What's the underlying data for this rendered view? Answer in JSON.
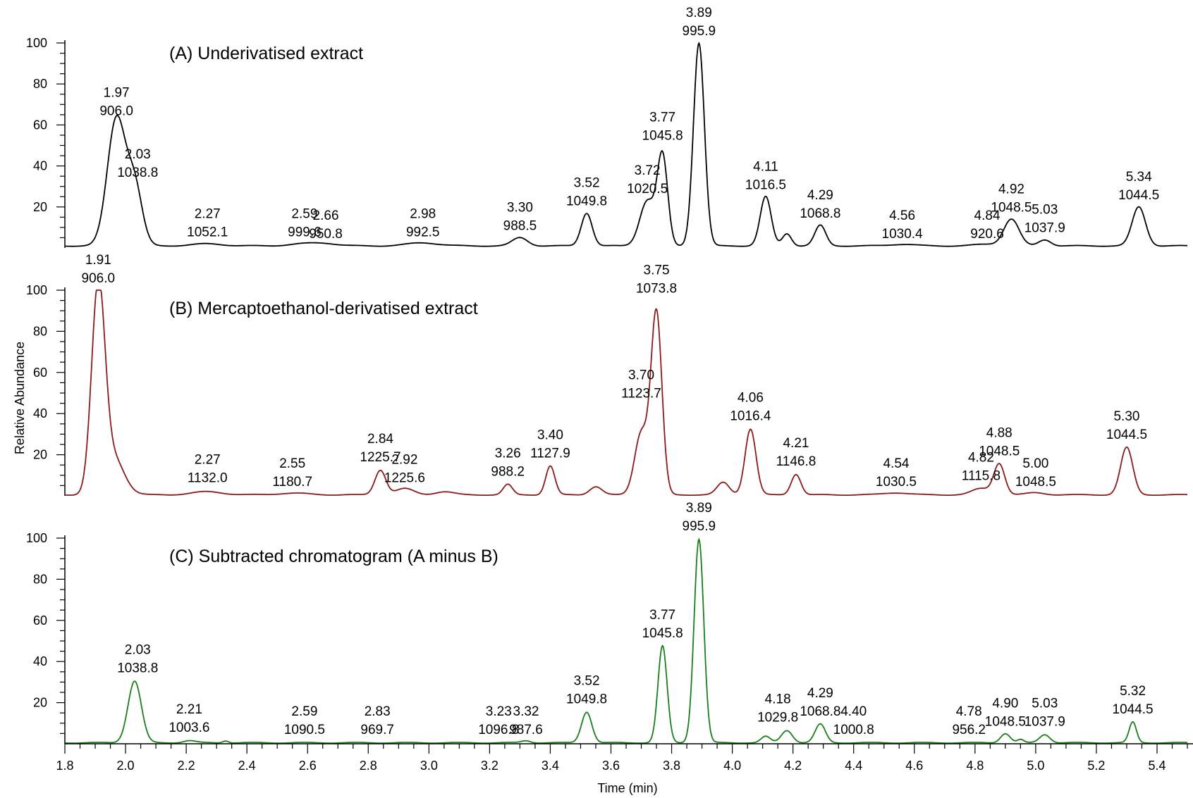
{
  "chart_data": {
    "type": "line",
    "xlabel": "Time (min)",
    "ylabel": "Relative Abundance",
    "xlim": [
      1.8,
      5.5
    ],
    "ylim": [
      0,
      100
    ],
    "x_ticks": [
      "1.8",
      "2.0",
      "2.2",
      "2.4",
      "2.6",
      "2.8",
      "3.0",
      "3.2",
      "3.4",
      "3.6",
      "3.8",
      "4.0",
      "4.2",
      "4.4",
      "4.6",
      "4.8",
      "5.0",
      "5.2",
      "5.4"
    ],
    "y_ticks": [
      "20",
      "40",
      "60",
      "80",
      "100"
    ],
    "panels": [
      {
        "title": "(A) Underivatised extract",
        "color": "#000000",
        "baseline": 1,
        "peaks": [
          {
            "rt": 1.97,
            "mz": 906.0,
            "height": 62,
            "width": 0.03
          },
          {
            "rt": 2.03,
            "mz": 1038.8,
            "height": 28,
            "width": 0.025
          },
          {
            "rt": 2.27,
            "mz": 1052.1,
            "height": 1,
            "width": 0.05
          },
          {
            "rt": 2.59,
            "mz": 999.6,
            "height": 1,
            "width": 0.05
          },
          {
            "rt": 2.66,
            "mz": 950.8,
            "height": 1,
            "width": 0.04
          },
          {
            "rt": 2.98,
            "mz": 992.5,
            "height": 1.5,
            "width": 0.05
          },
          {
            "rt": 3.3,
            "mz": 988.5,
            "height": 4,
            "width": 0.025
          },
          {
            "rt": 3.52,
            "mz": 1049.8,
            "height": 16,
            "width": 0.018
          },
          {
            "rt": 3.72,
            "mz": 1020.5,
            "height": 22,
            "width": 0.025
          },
          {
            "rt": 3.77,
            "mz": 1045.8,
            "height": 43,
            "width": 0.017
          },
          {
            "rt": 3.89,
            "mz": 995.9,
            "height": 99,
            "width": 0.018
          },
          {
            "rt": 4.11,
            "mz": 1016.5,
            "height": 24,
            "width": 0.018
          },
          {
            "rt": 4.18,
            "mz": null,
            "height": 6,
            "width": 0.015
          },
          {
            "rt": 4.29,
            "mz": 1068.8,
            "height": 10,
            "width": 0.018
          },
          {
            "rt": 4.56,
            "mz": 1030.4,
            "height": 0.8,
            "width": 0.04
          },
          {
            "rt": 4.84,
            "mz": 920.6,
            "height": 0.8,
            "width": 0.04
          },
          {
            "rt": 4.92,
            "mz": 1048.5,
            "height": 13,
            "width": 0.025
          },
          {
            "rt": 5.03,
            "mz": 1037.9,
            "height": 3,
            "width": 0.02
          },
          {
            "rt": 5.34,
            "mz": 1044.5,
            "height": 19,
            "width": 0.022
          }
        ],
        "labels": [
          {
            "rt": "1.97",
            "mz": "906.0",
            "x": 1.97,
            "y": 62
          },
          {
            "rt": "2.03",
            "mz": "1038.8",
            "x": 2.04,
            "y": 32
          },
          {
            "rt": "2.27",
            "mz": "1052.1",
            "x": 2.27,
            "y": 3
          },
          {
            "rt": "2.59",
            "mz": "999.6",
            "x": 2.59,
            "y": 3
          },
          {
            "rt": "2.66",
            "mz": "950.8",
            "x": 2.66,
            "y": 2
          },
          {
            "rt": "2.98",
            "mz": "992.5",
            "x": 2.98,
            "y": 3
          },
          {
            "rt": "3.30",
            "mz": "988.5",
            "x": 3.3,
            "y": 6
          },
          {
            "rt": "3.52",
            "mz": "1049.8",
            "x": 3.52,
            "y": 18
          },
          {
            "rt": "3.72",
            "mz": "1020.5",
            "x": 3.72,
            "y": 24
          },
          {
            "rt": "3.77",
            "mz": "1045.8",
            "x": 3.77,
            "y": 50
          },
          {
            "rt": "3.89",
            "mz": "995.9",
            "x": 3.89,
            "y": 101
          },
          {
            "rt": "4.11",
            "mz": "1016.5",
            "x": 4.11,
            "y": 26
          },
          {
            "rt": "4.29",
            "mz": "1068.8",
            "x": 4.29,
            "y": 12
          },
          {
            "rt": "4.56",
            "mz": "1030.4",
            "x": 4.56,
            "y": 2
          },
          {
            "rt": "4.84",
            "mz": "920.6",
            "x": 4.84,
            "y": 2
          },
          {
            "rt": "4.92",
            "mz": "1048.5",
            "x": 4.92,
            "y": 15
          },
          {
            "rt": "5.03",
            "mz": "1037.9",
            "x": 5.03,
            "y": 5
          },
          {
            "rt": "5.34",
            "mz": "1044.5",
            "x": 5.34,
            "y": 21
          }
        ]
      },
      {
        "title": "(B) Mercaptoethanol-derivatised extract",
        "color": "#8b1a1a",
        "baseline": 0.5,
        "peaks": [
          {
            "rt": 1.91,
            "mz": 906.0,
            "height": 99,
            "width": 0.022
          },
          {
            "rt": 1.96,
            "mz": null,
            "height": 18,
            "width": 0.035
          },
          {
            "rt": 2.27,
            "mz": 1132.0,
            "height": 1.5,
            "width": 0.05
          },
          {
            "rt": 2.55,
            "mz": 1180.7,
            "height": 0.8,
            "width": 0.05
          },
          {
            "rt": 2.84,
            "mz": 1225.7,
            "height": 12,
            "width": 0.018
          },
          {
            "rt": 2.92,
            "mz": 1225.6,
            "height": 3,
            "width": 0.03
          },
          {
            "rt": 3.05,
            "mz": null,
            "height": 1.5,
            "width": 0.03
          },
          {
            "rt": 3.26,
            "mz": 988.2,
            "height": 5,
            "width": 0.015
          },
          {
            "rt": 3.4,
            "mz": 1127.9,
            "height": 14,
            "width": 0.015
          },
          {
            "rt": 3.55,
            "mz": null,
            "height": 4,
            "width": 0.02
          },
          {
            "rt": 3.7,
            "mz": 1123.7,
            "height": 30,
            "width": 0.022
          },
          {
            "rt": 3.75,
            "mz": 1073.8,
            "height": 88,
            "width": 0.018
          },
          {
            "rt": 3.97,
            "mz": null,
            "height": 6,
            "width": 0.02
          },
          {
            "rt": 4.06,
            "mz": 1016.4,
            "height": 32,
            "width": 0.018
          },
          {
            "rt": 4.21,
            "mz": 1146.8,
            "height": 10,
            "width": 0.016
          },
          {
            "rt": 4.54,
            "mz": 1030.5,
            "height": 1,
            "width": 0.04
          },
          {
            "rt": 4.82,
            "mz": 1115.8,
            "height": 3,
            "width": 0.03
          },
          {
            "rt": 4.88,
            "mz": 1048.5,
            "height": 15,
            "width": 0.018
          },
          {
            "rt": 5.0,
            "mz": 1048.5,
            "height": 1,
            "width": 0.03
          },
          {
            "rt": 5.3,
            "mz": 1044.5,
            "height": 23,
            "width": 0.02
          }
        ],
        "labels": [
          {
            "rt": "1.91",
            "mz": "906.0",
            "x": 1.91,
            "y": 101
          },
          {
            "rt": "2.27",
            "mz": "1132.0",
            "x": 2.27,
            "y": 4
          },
          {
            "rt": "2.55",
            "mz": "1180.7",
            "x": 2.55,
            "y": 2
          },
          {
            "rt": "2.84",
            "mz": "1225.7",
            "x": 2.84,
            "y": 14
          },
          {
            "rt": "2.92",
            "mz": "1225.6",
            "x": 2.92,
            "y": 4
          },
          {
            "rt": "3.26",
            "mz": "988.2",
            "x": 3.26,
            "y": 7
          },
          {
            "rt": "3.40",
            "mz": "1127.9",
            "x": 3.4,
            "y": 16
          },
          {
            "rt": "3.70",
            "mz": "1123.7",
            "x": 3.7,
            "y": 45
          },
          {
            "rt": "3.75",
            "mz": "1073.8",
            "x": 3.75,
            "y": 96
          },
          {
            "rt": "4.06",
            "mz": "1016.4",
            "x": 4.06,
            "y": 34
          },
          {
            "rt": "4.21",
            "mz": "1146.8",
            "x": 4.21,
            "y": 12
          },
          {
            "rt": "4.54",
            "mz": "1030.5",
            "x": 4.54,
            "y": 2
          },
          {
            "rt": "4.82",
            "mz": "1115.8",
            "x": 4.82,
            "y": 5
          },
          {
            "rt": "4.88",
            "mz": "1048.5",
            "x": 4.88,
            "y": 17
          },
          {
            "rt": "5.00",
            "mz": "1048.5",
            "x": 5.0,
            "y": 2
          },
          {
            "rt": "5.30",
            "mz": "1044.5",
            "x": 5.3,
            "y": 25
          }
        ]
      },
      {
        "title": "(C) Subtracted chromatogram (A minus B)",
        "color": "#1a7f1a",
        "baseline": 0.5,
        "peaks": [
          {
            "rt": 2.03,
            "mz": 1038.8,
            "height": 30,
            "width": 0.022
          },
          {
            "rt": 2.21,
            "mz": 1003.6,
            "height": 1,
            "width": 0.02
          },
          {
            "rt": 2.33,
            "mz": null,
            "height": 1,
            "width": 0.01
          },
          {
            "rt": 3.32,
            "mz": 987.6,
            "height": 1,
            "width": 0.015
          },
          {
            "rt": 3.52,
            "mz": 1049.8,
            "height": 15,
            "width": 0.017
          },
          {
            "rt": 3.77,
            "mz": 1045.8,
            "height": 47,
            "width": 0.015
          },
          {
            "rt": 3.89,
            "mz": 995.9,
            "height": 99,
            "width": 0.016
          },
          {
            "rt": 4.11,
            "mz": null,
            "height": 3,
            "width": 0.015
          },
          {
            "rt": 4.18,
            "mz": 1029.8,
            "height": 6,
            "width": 0.018
          },
          {
            "rt": 4.29,
            "mz": 1068.8,
            "height": 9,
            "width": 0.017
          },
          {
            "rt": 4.9,
            "mz": 1048.5,
            "height": 4.5,
            "width": 0.016
          },
          {
            "rt": 4.95,
            "mz": null,
            "height": 1.5,
            "width": 0.01
          },
          {
            "rt": 5.03,
            "mz": 1037.9,
            "height": 4,
            "width": 0.017
          },
          {
            "rt": 5.32,
            "mz": 1044.5,
            "height": 10,
            "width": 0.012
          }
        ],
        "labels": [
          {
            "rt": "2.03",
            "mz": "1038.8",
            "x": 2.04,
            "y": 32
          },
          {
            "rt": "2.21",
            "mz": "1003.6",
            "x": 2.21,
            "y": 3
          },
          {
            "rt": "2.59",
            "mz": "1090.5",
            "x": 2.59,
            "y": 2
          },
          {
            "rt": "2.83",
            "mz": "969.7",
            "x": 2.83,
            "y": 2
          },
          {
            "rt": "3.23",
            "mz": "1096.8",
            "x": 3.23,
            "y": 2
          },
          {
            "rt": "3.32",
            "mz": "987.6",
            "x": 3.32,
            "y": 2
          },
          {
            "rt": "3.52",
            "mz": "1049.8",
            "x": 3.52,
            "y": 17
          },
          {
            "rt": "3.77",
            "mz": "1045.8",
            "x": 3.77,
            "y": 49
          },
          {
            "rt": "3.89",
            "mz": "995.9",
            "x": 3.89,
            "y": 101
          },
          {
            "rt": "4.18",
            "mz": "1029.8",
            "x": 4.15,
            "y": 8
          },
          {
            "rt": "4.29",
            "mz": "1068.8",
            "x": 4.29,
            "y": 11
          },
          {
            "rt": "4.40",
            "mz": "1000.8",
            "x": 4.4,
            "y": 2
          },
          {
            "rt": "4.78",
            "mz": "956.2",
            "x": 4.78,
            "y": 2
          },
          {
            "rt": "4.90",
            "mz": "1048.5",
            "x": 4.9,
            "y": 6
          },
          {
            "rt": "5.03",
            "mz": "1037.9",
            "x": 5.03,
            "y": 6
          },
          {
            "rt": "5.32",
            "mz": "1044.5",
            "x": 5.32,
            "y": 12
          }
        ]
      }
    ]
  }
}
